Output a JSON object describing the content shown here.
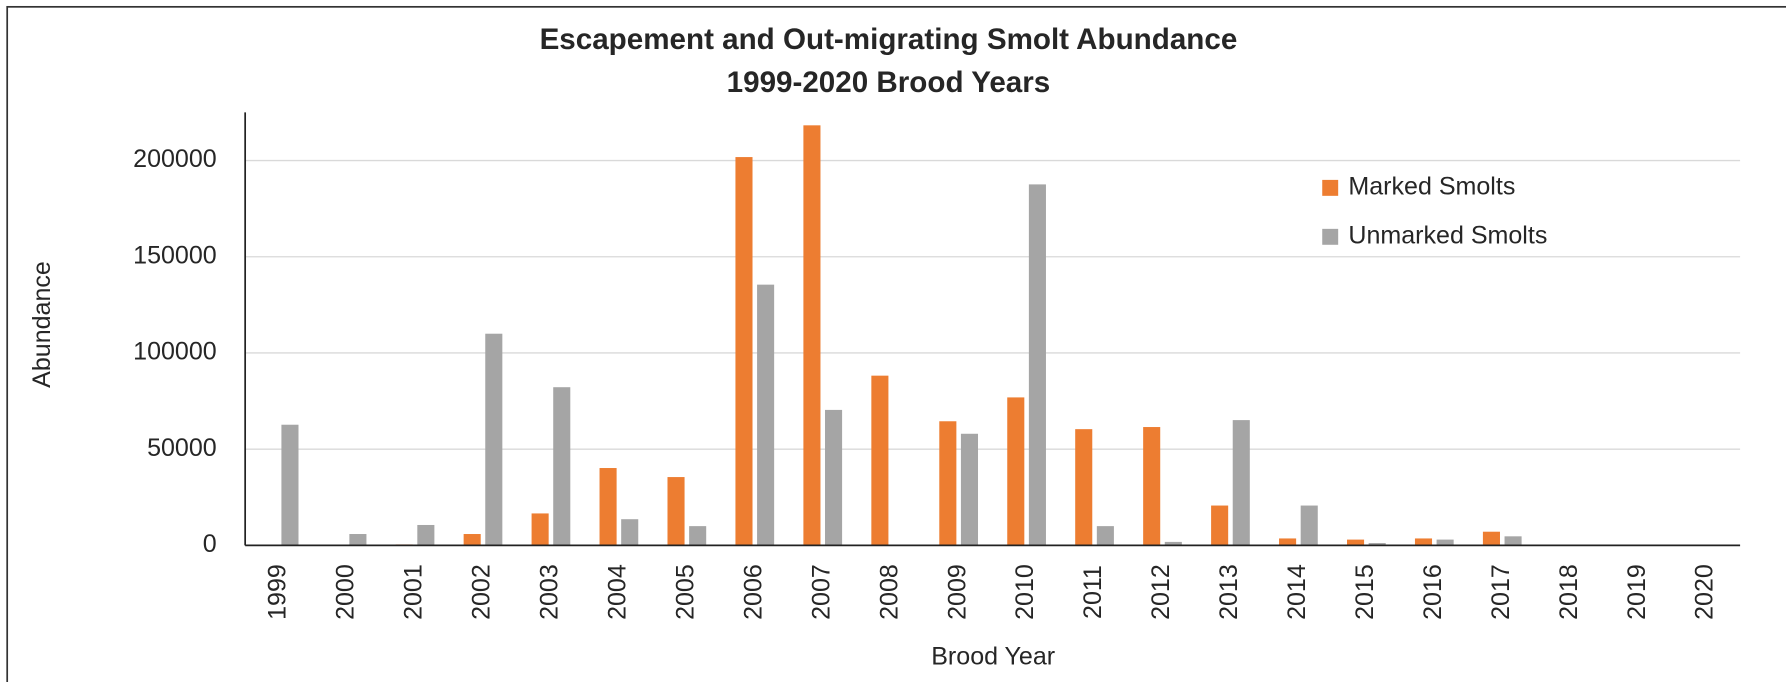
{
  "chart_data": {
    "type": "bar",
    "title": "Escapement and Out-migrating Smolt Abundance",
    "subtitle": "1999-2020 Brood Years",
    "x_label": "Brood Year",
    "y_label": "Abundance",
    "categories": [
      "1999",
      "2000",
      "2001",
      "2002",
      "2003",
      "2004",
      "2005",
      "2006",
      "2007",
      "2008",
      "2009",
      "2010",
      "2011",
      "2012",
      "2013",
      "2014",
      "2015",
      "2016",
      "2017",
      "2018",
      "2019",
      "2020"
    ],
    "series": [
      {
        "name": "Marked Smolts",
        "color": "#ed7d31",
        "values": [
          0,
          0,
          500,
          5900,
          16600,
          40200,
          35500,
          201800,
          218300,
          88200,
          64500,
          76900,
          60400,
          61500,
          20700,
          3600,
          3000,
          3600,
          7100,
          0,
          0,
          0
        ]
      },
      {
        "name": "Unmarked Smolts",
        "color": "#a5a5a5",
        "values": [
          62700,
          5900,
          10600,
          110000,
          82200,
          13600,
          10000,
          135500,
          70400,
          0,
          58000,
          187600,
          10000,
          1800,
          65100,
          20700,
          1200,
          3000,
          4700,
          0,
          0,
          0
        ]
      }
    ],
    "ylim": [
      0,
      225000
    ],
    "yticks": [
      0,
      50000,
      100000,
      150000,
      200000
    ],
    "grid": true,
    "legend": "upper right"
  }
}
